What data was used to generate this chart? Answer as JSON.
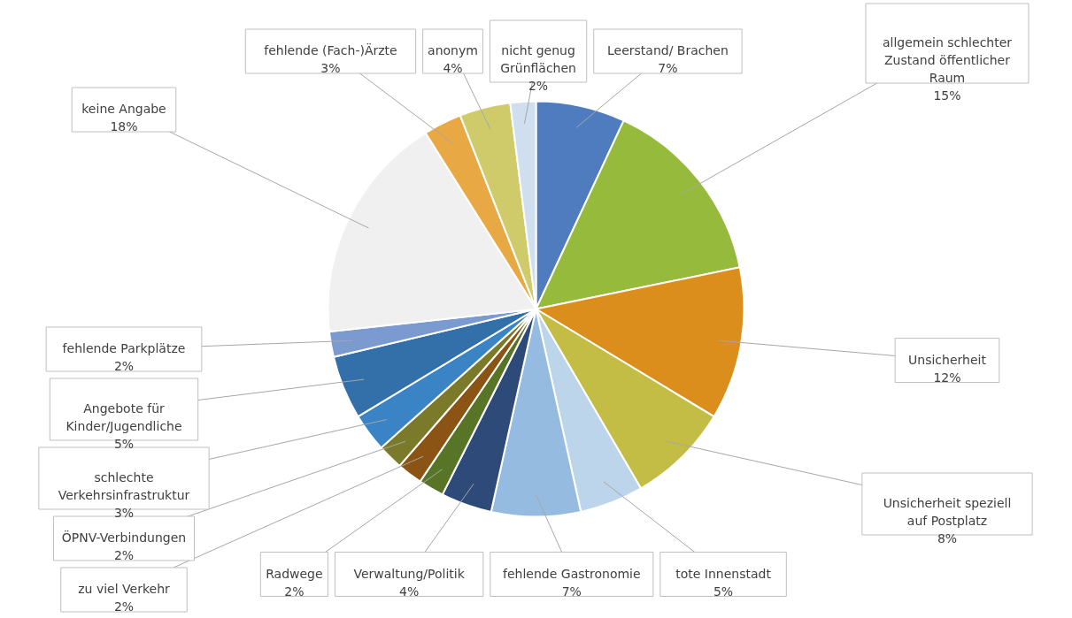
{
  "chart_data": {
    "type": "pie",
    "categories": [
      "Leerstand/ Brachen",
      "allgemein schlechter Zustand öffentlicher Raum",
      "Unsicherheit",
      "Unsicherheit speziell auf Postplatz",
      "tote Innenstadt",
      "fehlende Gastronomie",
      "Verwaltung/Politik",
      "Radwege",
      "zu viel Verkehr",
      "ÖPNV-Verbindungen",
      "schlechte Verkehrsinfrastruktur",
      "Angebote für Kinder/Jugendliche",
      "fehlende Parkplätze",
      "keine Angabe",
      "fehlende (Fach-)Ärzte",
      "anonym",
      "nicht genug Grünflächen"
    ],
    "values": [
      7,
      15,
      12,
      8,
      5,
      7,
      4,
      2,
      2,
      2,
      3,
      5,
      2,
      18,
      3,
      4,
      2
    ],
    "value_labels": [
      "7%",
      "15%",
      "12%",
      "8%",
      "5%",
      "7%",
      "4%",
      "2%",
      "2%",
      "2%",
      "3%",
      "5%",
      "2%",
      "18%",
      "3%",
      "4%",
      "2%"
    ],
    "colors": [
      "#4f7bbf",
      "#96bb3c",
      "#dc8e1c",
      "#c3bd45",
      "#bdd5ea",
      "#96bbe0",
      "#2e4a78",
      "#587426",
      "#8b5414",
      "#7a7a2a",
      "#3a84c6",
      "#336fa8",
      "#7b9ad0",
      "#f0f0f0",
      "#e8a843",
      "#d0cb6a",
      "#cfdff0"
    ]
  }
}
